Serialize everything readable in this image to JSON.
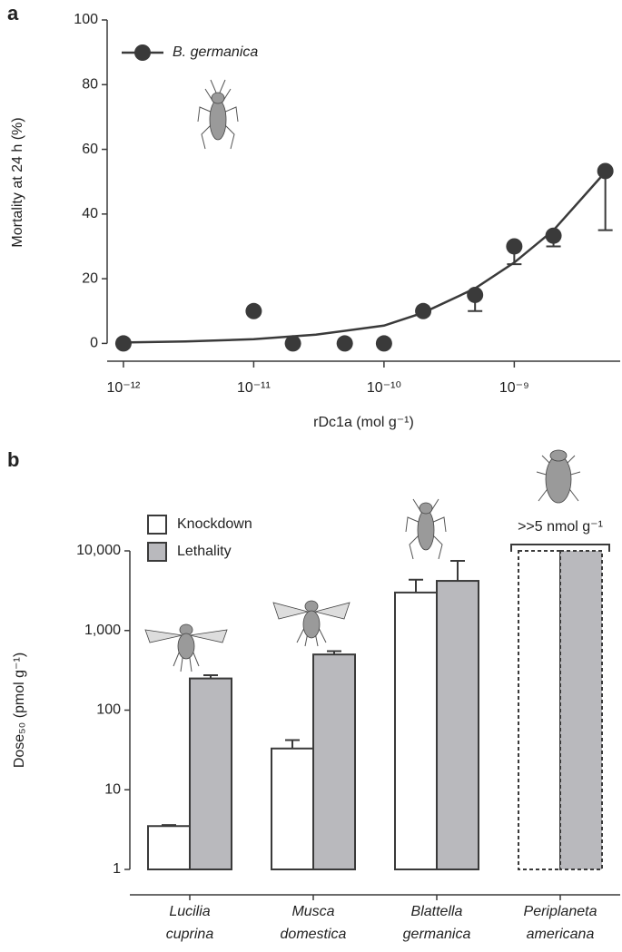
{
  "chart_data": [
    {
      "type": "scatter",
      "panel_label": "a",
      "x_label": "rDc1a (mol g⁻¹)",
      "y_label": "Mortality at 24 h (%)",
      "xscale": "log",
      "xlim": [
        7.5e-13,
        6.5e-09
      ],
      "xticks": [
        {
          "value": 1e-12,
          "label": "10⁻¹²"
        },
        {
          "value": 1e-11,
          "label": "10⁻¹¹"
        },
        {
          "value": 1e-10,
          "label": "10⁻¹⁰"
        },
        {
          "value": 1e-09,
          "label": "10⁻⁹"
        }
      ],
      "ylim": [
        -5.5,
        100
      ],
      "yticks": [
        0,
        20,
        40,
        60,
        80,
        100
      ],
      "legend": "upper left",
      "series": [
        {
          "name": "B. germanica",
          "color": "#3a3a3a",
          "x": [
            1e-12,
            1e-11,
            2e-11,
            5e-11,
            1e-10,
            2e-10,
            5e-10,
            1e-09,
            2e-09,
            5e-09
          ],
          "values": [
            0,
            10,
            0,
            0,
            0,
            10,
            15,
            30,
            33.3,
            53.3
          ],
          "errors": [
            null,
            null,
            null,
            null,
            null,
            null,
            5,
            5.5,
            3.3,
            18.3
          ],
          "fit": {
            "x": [
              1e-12,
              3e-12,
              1e-11,
              3e-11,
              1e-10,
              2e-10,
              5e-10,
              1e-09,
              2e-09,
              5e-09
            ],
            "values": [
              0.3,
              0.6,
              1.3,
              2.7,
              5.5,
              9.5,
              17,
              25,
              35,
              53
            ]
          }
        }
      ]
    },
    {
      "type": "bar",
      "panel_label": "b",
      "y_label": "Dose₅₀ (pmol g⁻¹)",
      "yscale": "log",
      "ylim": [
        1,
        10000
      ],
      "yticks": [
        1,
        10,
        100,
        {
          "value": 1000,
          "label": "1,000"
        },
        {
          "value": 10000,
          "label": "10,000"
        }
      ],
      "categories": [
        [
          "Lucilia",
          "cuprina"
        ],
        [
          "Musca",
          "domestica"
        ],
        [
          "Blattella",
          "germanica"
        ],
        [
          "Periplaneta",
          "americana"
        ]
      ],
      "legend": "upper left",
      "annotation": ">>5 nmol g⁻¹",
      "series": [
        {
          "name": "Knockdown",
          "color": "#ffffff",
          "values": [
            3.5,
            33,
            3000,
            null
          ],
          "errors": [
            0.1,
            9,
            1350,
            null
          ]
        },
        {
          "name": "Lethality",
          "color": "#b9b9bd",
          "values": [
            250,
            500,
            4200,
            null
          ],
          "errors": [
            25,
            50,
            3300,
            null
          ]
        }
      ]
    }
  ]
}
